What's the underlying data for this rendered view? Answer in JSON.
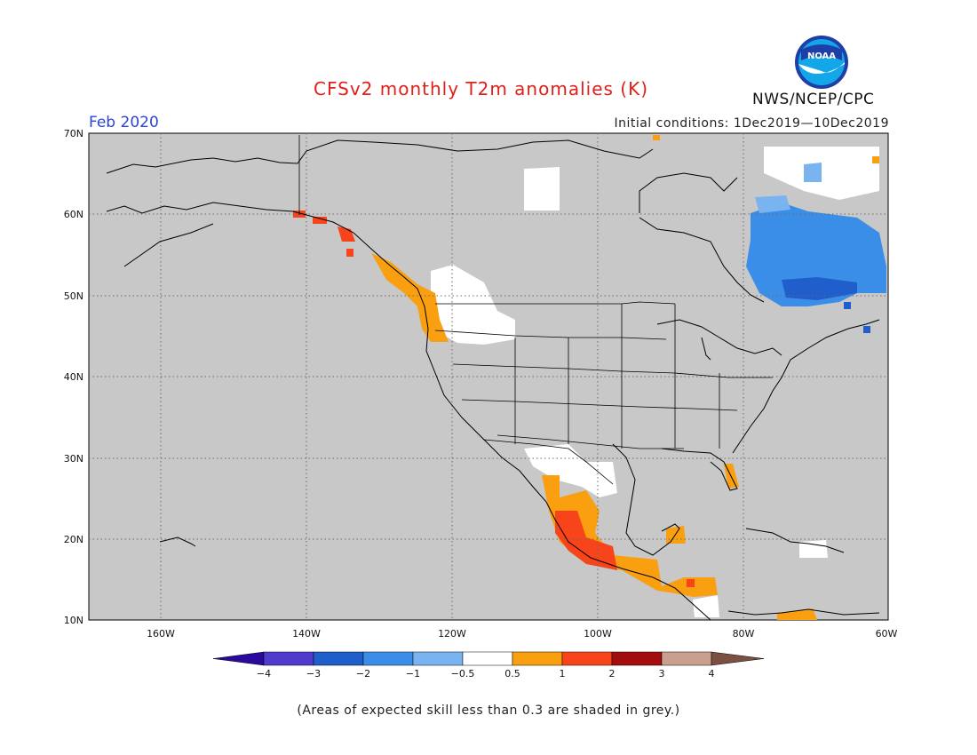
{
  "header": {
    "title": "CFSv2 monthly T2m anomalies (K)",
    "month": "Feb 2020",
    "initial_conditions": "Initial conditions: 1Dec2019—10Dec2019",
    "agency": "NWS/NCEP/CPC",
    "logo_text": "NOAA"
  },
  "map": {
    "lat_labels": [
      "70N",
      "60N",
      "50N",
      "40N",
      "30N",
      "20N",
      "10N"
    ],
    "lon_labels": [
      "160W",
      "140W",
      "120W",
      "100W",
      "80W",
      "60W"
    ],
    "background_color": "#c8c8c8",
    "grid": "dotted"
  },
  "legend": {
    "ticks": [
      "−4",
      "−3",
      "−2",
      "−1",
      "−0.5",
      "0.5",
      "1",
      "2",
      "3",
      "4"
    ],
    "colors": [
      "#2a0a9c",
      "#4f3ccd",
      "#1f5ecb",
      "#3b8ee8",
      "#79b4f0",
      "#ffffff",
      "#f99f10",
      "#f7441a",
      "#a30d0d",
      "#c9a090",
      "#7a5040"
    ]
  },
  "footnote": "(Areas of expected skill less than 0.3 are shaded in grey.)"
}
